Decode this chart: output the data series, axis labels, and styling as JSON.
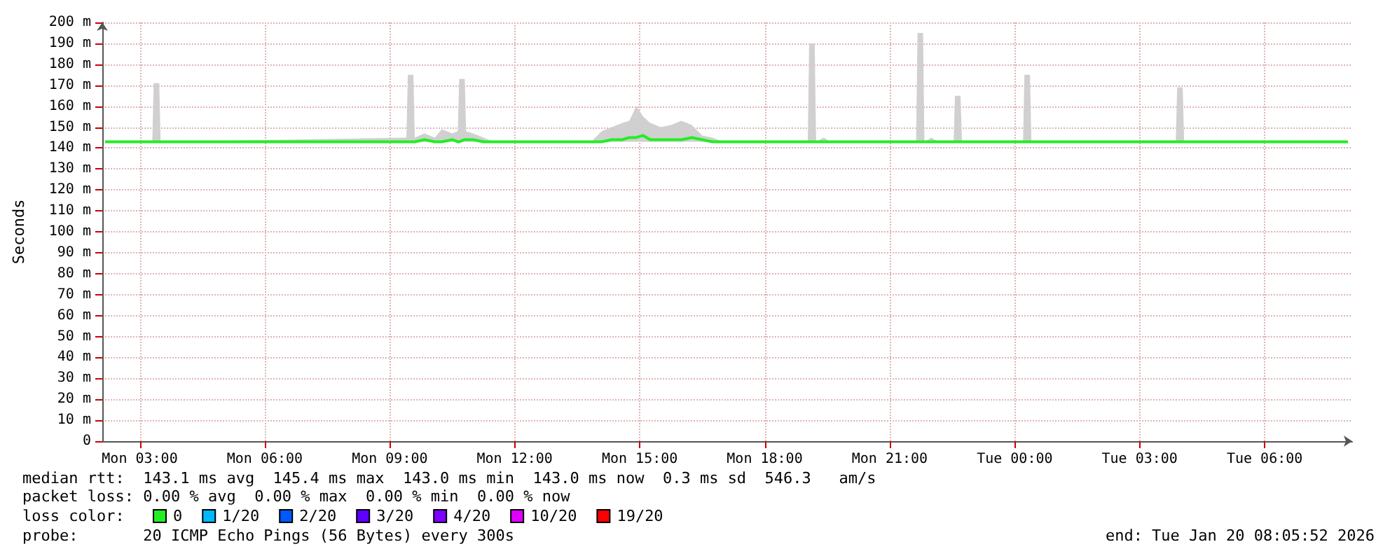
{
  "chart_data": {
    "type": "line",
    "ylabel": "Seconds",
    "legend_title": "loss color:",
    "legend": "bottom",
    "grid": true,
    "marker": "none",
    "line_style": "solid",
    "x": [
      "2026-01-19T02:10",
      "2026-01-19T03:18",
      "2026-01-19T03:20",
      "2026-01-19T03:28",
      "2026-01-19T03:30",
      "2026-01-19T09:24",
      "2026-01-19T09:26",
      "2026-01-19T09:34",
      "2026-01-19T09:36",
      "2026-01-19T09:50",
      "2026-01-19T10:05",
      "2026-01-19T10:15",
      "2026-01-19T10:30",
      "2026-01-19T10:38",
      "2026-01-19T10:40",
      "2026-01-19T10:48",
      "2026-01-19T10:50",
      "2026-01-19T11:00",
      "2026-01-19T11:15",
      "2026-01-19T11:30",
      "2026-01-19T13:50",
      "2026-01-19T14:05",
      "2026-01-19T14:20",
      "2026-01-19T14:35",
      "2026-01-19T14:45",
      "2026-01-19T14:55",
      "2026-01-19T15:05",
      "2026-01-19T15:15",
      "2026-01-19T15:30",
      "2026-01-19T15:45",
      "2026-01-19T16:00",
      "2026-01-19T16:15",
      "2026-01-19T16:30",
      "2026-01-19T16:45",
      "2026-01-19T17:00",
      "2026-01-19T19:02",
      "2026-01-19T19:04",
      "2026-01-19T19:12",
      "2026-01-19T19:14",
      "2026-01-19T19:25",
      "2026-01-19T19:35",
      "2026-01-19T21:38",
      "2026-01-19T21:40",
      "2026-01-19T21:48",
      "2026-01-19T21:50",
      "2026-01-19T22:00",
      "2026-01-19T22:10",
      "2026-01-19T22:32",
      "2026-01-19T22:34",
      "2026-01-19T22:42",
      "2026-01-19T22:44",
      "2026-01-20T00:12",
      "2026-01-20T00:14",
      "2026-01-20T00:22",
      "2026-01-20T00:24",
      "2026-01-20T03:52",
      "2026-01-20T03:54",
      "2026-01-20T04:02",
      "2026-01-20T04:04",
      "2026-01-20T08:00"
    ],
    "series": [
      {
        "name": "0",
        "color": "#22ee22",
        "values": [
          143,
          143,
          143,
          143,
          143,
          143,
          143,
          143,
          143,
          144,
          143,
          143,
          144,
          143,
          143,
          144,
          144,
          144,
          143,
          143,
          143,
          143,
          144,
          144,
          145,
          145,
          146,
          144,
          144,
          144,
          144,
          145,
          144,
          143,
          143,
          143,
          143,
          143,
          143,
          143,
          143,
          143,
          143,
          143,
          143,
          143,
          143,
          143,
          143,
          143,
          143,
          143,
          143,
          143,
          143,
          143,
          143,
          143,
          143,
          143
        ],
        "lower": [
          143,
          143,
          143,
          143,
          143,
          143,
          143,
          143,
          143,
          143,
          143,
          143,
          143,
          143,
          143,
          143,
          143,
          143,
          143,
          143,
          143,
          143,
          143,
          143,
          143,
          143,
          143,
          143,
          143,
          143,
          143,
          143,
          143,
          143,
          143,
          143,
          143,
          143,
          143,
          143,
          143,
          143,
          143,
          143,
          143,
          143,
          143,
          143,
          143,
          143,
          143,
          143,
          143,
          143,
          143,
          143,
          143,
          143,
          143,
          143
        ],
        "upper": [
          143,
          143,
          171,
          171,
          143,
          145,
          175,
          175,
          145,
          147,
          145,
          149,
          147,
          148,
          173,
          173,
          148,
          147,
          145,
          143,
          143,
          148,
          150,
          152,
          153,
          160,
          155,
          152,
          150,
          151,
          153,
          151,
          146,
          145,
          143,
          143,
          190,
          190,
          143,
          145,
          143,
          143,
          195,
          195,
          143,
          145,
          143,
          143,
          165,
          165,
          143,
          143,
          175,
          175,
          143,
          143,
          169,
          169,
          143,
          143
        ]
      },
      {
        "name": "1/20",
        "color": "#00b8ff",
        "values": [
          null,
          null,
          null,
          null,
          null,
          null,
          null,
          null,
          null,
          null,
          null,
          null,
          null,
          null,
          null,
          null,
          null,
          null,
          null,
          null,
          null,
          null,
          null,
          null,
          null,
          null,
          null,
          null,
          null,
          null,
          null,
          null,
          null,
          null,
          null,
          null,
          null,
          null,
          null,
          null,
          null,
          null,
          null,
          null,
          null,
          null,
          null,
          null,
          null,
          null,
          null,
          null,
          null,
          null,
          null,
          null,
          null,
          null,
          null,
          null
        ]
      },
      {
        "name": "2/20",
        "color": "#0059ff",
        "values": [
          null,
          null,
          null,
          null,
          null,
          null,
          null,
          null,
          null,
          null,
          null,
          null,
          null,
          null,
          null,
          null,
          null,
          null,
          null,
          null,
          null,
          null,
          null,
          null,
          null,
          null,
          null,
          null,
          null,
          null,
          null,
          null,
          null,
          null,
          null,
          null,
          null,
          null,
          null,
          null,
          null,
          null,
          null,
          null,
          null,
          null,
          null,
          null,
          null,
          null,
          null,
          null,
          null,
          null,
          null,
          null,
          null,
          null,
          null,
          null
        ]
      },
      {
        "name": "3/20",
        "color": "#5e00ff",
        "values": [
          null,
          null,
          null,
          null,
          null,
          null,
          null,
          null,
          null,
          null,
          null,
          null,
          null,
          null,
          null,
          null,
          null,
          null,
          null,
          null,
          null,
          null,
          null,
          null,
          null,
          null,
          null,
          null,
          null,
          null,
          null,
          null,
          null,
          null,
          null,
          null,
          null,
          null,
          null,
          null,
          null,
          null,
          null,
          null,
          null,
          null,
          null,
          null,
          null,
          null,
          null,
          null,
          null,
          null,
          null,
          null,
          null,
          null,
          null,
          null
        ]
      },
      {
        "name": "4/20",
        "color": "#7e00ff",
        "values": [
          null,
          null,
          null,
          null,
          null,
          null,
          null,
          null,
          null,
          null,
          null,
          null,
          null,
          null,
          null,
          null,
          null,
          null,
          null,
          null,
          null,
          null,
          null,
          null,
          null,
          null,
          null,
          null,
          null,
          null,
          null,
          null,
          null,
          null,
          null,
          null,
          null,
          null,
          null,
          null,
          null,
          null,
          null,
          null,
          null,
          null,
          null,
          null,
          null,
          null,
          null,
          null,
          null,
          null,
          null,
          null,
          null,
          null,
          null,
          null
        ]
      },
      {
        "name": "10/20",
        "color": "#dd00ff",
        "values": [
          null,
          null,
          null,
          null,
          null,
          null,
          null,
          null,
          null,
          null,
          null,
          null,
          null,
          null,
          null,
          null,
          null,
          null,
          null,
          null,
          null,
          null,
          null,
          null,
          null,
          null,
          null,
          null,
          null,
          null,
          null,
          null,
          null,
          null,
          null,
          null,
          null,
          null,
          null,
          null,
          null,
          null,
          null,
          null,
          null,
          null,
          null,
          null,
          null,
          null,
          null,
          null,
          null,
          null,
          null,
          null,
          null,
          null,
          null,
          null
        ]
      },
      {
        "name": "19/20",
        "color": "#ff0000",
        "values": [
          null,
          null,
          null,
          null,
          null,
          null,
          null,
          null,
          null,
          null,
          null,
          null,
          null,
          null,
          null,
          null,
          null,
          null,
          null,
          null,
          null,
          null,
          null,
          null,
          null,
          null,
          null,
          null,
          null,
          null,
          null,
          null,
          null,
          null,
          null,
          null,
          null,
          null,
          null,
          null,
          null,
          null,
          null,
          null,
          null,
          null,
          null,
          null,
          null,
          null,
          null,
          null,
          null,
          null,
          null,
          null,
          null,
          null,
          null,
          null
        ]
      }
    ],
    "xlim": [
      "2026-01-19T02:06",
      "2026-01-20T08:06"
    ],
    "xticks": [
      {
        "value": "2026-01-19T03:00",
        "label": "Mon 03:00"
      },
      {
        "value": "2026-01-19T06:00",
        "label": "Mon 06:00"
      },
      {
        "value": "2026-01-19T09:00",
        "label": "Mon 09:00"
      },
      {
        "value": "2026-01-19T12:00",
        "label": "Mon 12:00"
      },
      {
        "value": "2026-01-19T15:00",
        "label": "Mon 15:00"
      },
      {
        "value": "2026-01-19T18:00",
        "label": "Mon 18:00"
      },
      {
        "value": "2026-01-19T21:00",
        "label": "Mon 21:00"
      },
      {
        "value": "2026-01-20T00:00",
        "label": "Tue 00:00"
      },
      {
        "value": "2026-01-20T03:00",
        "label": "Tue 03:00"
      },
      {
        "value": "2026-01-20T06:00",
        "label": "Tue 06:00"
      }
    ],
    "ylim": [
      0,
      200
    ],
    "yticks": [
      0,
      {
        "value": 10,
        "label": "10 m"
      },
      {
        "value": 20,
        "label": "20 m"
      },
      {
        "value": 30,
        "label": "30 m"
      },
      {
        "value": 40,
        "label": "40 m"
      },
      {
        "value": 50,
        "label": "50 m"
      },
      {
        "value": 60,
        "label": "60 m"
      },
      {
        "value": 70,
        "label": "70 m"
      },
      {
        "value": 80,
        "label": "80 m"
      },
      {
        "value": 90,
        "label": "90 m"
      },
      {
        "value": 100,
        "label": "100 m"
      },
      {
        "value": 110,
        "label": "110 m"
      },
      {
        "value": 120,
        "label": "120 m"
      },
      {
        "value": 130,
        "label": "130 m"
      },
      {
        "value": 140,
        "label": "140 m"
      },
      {
        "value": 150,
        "label": "150 m"
      },
      {
        "value": 160,
        "label": "160 m"
      },
      {
        "value": 170,
        "label": "170 m"
      },
      {
        "value": 180,
        "label": "180 m"
      },
      {
        "value": 190,
        "label": "190 m"
      },
      {
        "value": 200,
        "label": "200 m"
      }
    ],
    "annotations": [
      "median rtt:  143.1 ms avg  145.4 ms max  143.0 ms min  143.0 ms now  0.3 ms sd  546.3   am/s",
      "packet loss: 0.00 % avg  0.00 % max  0.00 % min  0.00 % now",
      "probe:       20 ICMP Echo Pings (56 Bytes) every 300s",
      "end: Tue Jan 20 08:05:52 2026"
    ]
  }
}
